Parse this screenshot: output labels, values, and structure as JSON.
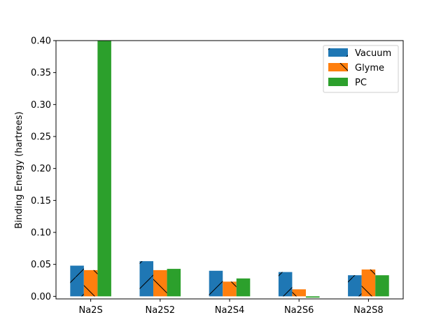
{
  "chart_data": {
    "type": "bar",
    "title": "",
    "xlabel": "",
    "ylabel": "Binding Energy (hartrees)",
    "categories": [
      "Na2S",
      "Na2S2",
      "Na2S4",
      "Na2S6",
      "Na2S8"
    ],
    "series": [
      {
        "name": "Vacuum",
        "values": [
          0.048,
          0.055,
          0.04,
          0.038,
          0.033
        ],
        "color": "#1f77b4",
        "hatch": "/"
      },
      {
        "name": "Glyme",
        "values": [
          0.041,
          0.041,
          0.023,
          0.011,
          0.042
        ],
        "color": "#ff7f0e",
        "hatch": "\\"
      },
      {
        "name": "PC",
        "values": [
          0.4,
          0.043,
          0.028,
          -0.002,
          0.033
        ],
        "color": "#2ca02c",
        "hatch": ""
      }
    ],
    "ylim": [
      -0.004,
      0.4
    ],
    "yticks": [
      "0.00",
      "0.05",
      "0.10",
      "0.15",
      "0.20",
      "0.25",
      "0.30",
      "0.35",
      "0.40"
    ],
    "grid": false,
    "legend_position": "top-right"
  }
}
